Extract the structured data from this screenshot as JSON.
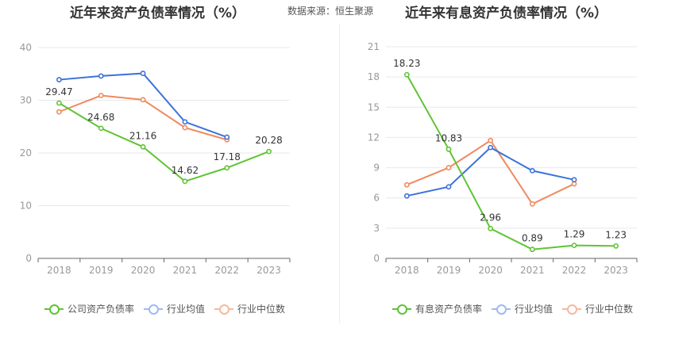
{
  "source_label": "数据来源：恒生聚源",
  "colors": {
    "company": "#5fc434",
    "avg": "#3d72d9",
    "median": "#ef8a5f",
    "legend_avg": "#9fbbf0",
    "legend_median": "#f6b99c",
    "grid": "#e9e9e9",
    "axis": "#666666",
    "tick": "#999999",
    "label": "#333333"
  },
  "chart_data": [
    {
      "type": "line",
      "title": "近年来资产负债率情况（%）",
      "categories": [
        "2018",
        "2019",
        "2020",
        "2021",
        "2022",
        "2023"
      ],
      "ylim": [
        0,
        40
      ],
      "yticks": [
        0,
        10,
        20,
        30,
        40
      ],
      "grid": true,
      "legend_position": "bottom",
      "series": [
        {
          "name": "公司资产负债率",
          "values": [
            29.47,
            24.68,
            21.16,
            14.62,
            17.18,
            20.28
          ],
          "labels": true
        },
        {
          "name": "行业均值",
          "values": [
            33.9,
            34.6,
            35.1,
            25.9,
            23.0,
            null
          ],
          "labels": false
        },
        {
          "name": "行业中位数",
          "values": [
            27.8,
            30.9,
            30.1,
            24.8,
            22.5,
            null
          ],
          "labels": false
        }
      ]
    },
    {
      "type": "line",
      "title": "近年来有息资产负债率情况（%）",
      "categories": [
        "2018",
        "2019",
        "2020",
        "2021",
        "2022",
        "2023"
      ],
      "ylim": [
        0,
        21
      ],
      "yticks": [
        0,
        3,
        6,
        9,
        12,
        15,
        18,
        21
      ],
      "grid": true,
      "legend_position": "bottom",
      "series": [
        {
          "name": "有息资产负债率",
          "values": [
            18.23,
            10.83,
            2.96,
            0.89,
            1.29,
            1.23
          ],
          "labels": true
        },
        {
          "name": "行业均值",
          "values": [
            6.2,
            7.1,
            11.0,
            8.7,
            7.8,
            null
          ],
          "labels": false
        },
        {
          "name": "行业中位数",
          "values": [
            7.3,
            9.0,
            11.7,
            5.4,
            7.4,
            null
          ],
          "labels": false
        }
      ]
    }
  ]
}
